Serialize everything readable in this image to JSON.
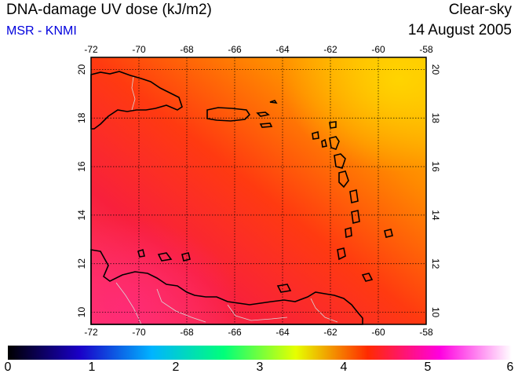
{
  "header": {
    "title": "DNA-damage UV dose (kJ/m2)",
    "subtitle": "MSR - KNMI",
    "condition": "Clear-sky",
    "date": "14 August 2005"
  },
  "colors": {
    "subtitle": "#0000dd",
    "coastline": "#000000",
    "borders": "#d8d8d8",
    "grid": "#000000"
  },
  "map": {
    "lon_range": [
      -72,
      -58
    ],
    "lat_range": [
      9.5,
      20.5
    ],
    "lon_ticks": [
      "-72",
      "-70",
      "-68",
      "-66",
      "-64",
      "-62",
      "-60",
      "-58"
    ],
    "lat_ticks": [
      "10",
      "12",
      "14",
      "16",
      "18",
      "20"
    ],
    "grid": true
  },
  "colorbar": {
    "min": 0,
    "max": 6,
    "labels": [
      "0",
      "1",
      "2",
      "3",
      "4",
      "5",
      "6"
    ],
    "colors": [
      "#000000",
      "#1a00c8",
      "#00b4ff",
      "#00ff7a",
      "#e6ff00",
      "#ff2a00",
      "#ff00e0",
      "#ffffff"
    ]
  }
}
